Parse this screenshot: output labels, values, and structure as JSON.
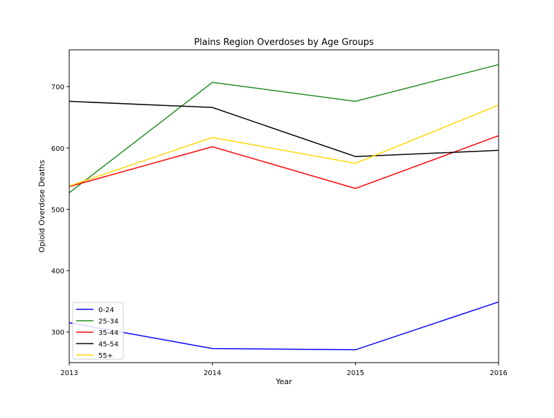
{
  "chart_data": {
    "type": "line",
    "title": "Plains Region Overdoses by Age Groups",
    "xlabel": "Year",
    "ylabel": "Opioid Overdose Deaths",
    "x": [
      2013,
      2014,
      2015,
      2016
    ],
    "xlim": [
      2013,
      2016
    ],
    "ylim": [
      250,
      760
    ],
    "yticks": [
      300,
      400,
      500,
      600,
      700
    ],
    "grid": false,
    "legend_position": "lower-left",
    "series": [
      {
        "name": "0-24",
        "color": "#0000ff",
        "values": [
          315,
          273,
          271,
          349
        ]
      },
      {
        "name": "25-34",
        "color": "#228b22",
        "values": [
          527,
          707,
          676,
          736
        ]
      },
      {
        "name": "35-44",
        "color": "#ff0000",
        "values": [
          537,
          602,
          534,
          620
        ]
      },
      {
        "name": "45-54",
        "color": "#000000",
        "values": [
          676,
          666,
          586,
          596
        ]
      },
      {
        "name": "55+",
        "color": "#ffd700",
        "values": [
          538,
          617,
          575,
          670
        ]
      }
    ]
  }
}
